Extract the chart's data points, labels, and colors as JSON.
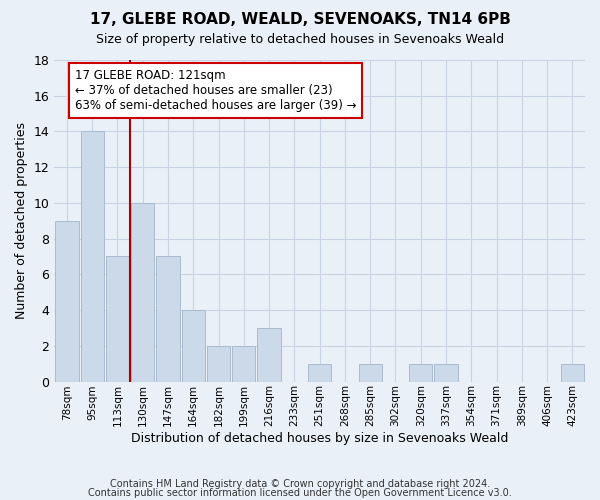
{
  "title1": "17, GLEBE ROAD, WEALD, SEVENOAKS, TN14 6PB",
  "title2": "Size of property relative to detached houses in Sevenoaks Weald",
  "xlabel": "Distribution of detached houses by size in Sevenoaks Weald",
  "ylabel": "Number of detached properties",
  "categories": [
    "78sqm",
    "95sqm",
    "113sqm",
    "130sqm",
    "147sqm",
    "164sqm",
    "182sqm",
    "199sqm",
    "216sqm",
    "233sqm",
    "251sqm",
    "268sqm",
    "285sqm",
    "302sqm",
    "320sqm",
    "337sqm",
    "354sqm",
    "371sqm",
    "389sqm",
    "406sqm",
    "423sqm"
  ],
  "values": [
    9,
    14,
    7,
    10,
    7,
    4,
    2,
    2,
    3,
    0,
    1,
    0,
    1,
    0,
    1,
    1,
    0,
    0,
    0,
    0,
    1
  ],
  "bar_color": "#ccd9e8",
  "bar_edge_color": "#aabbd0",
  "grid_color": "#c8d4e4",
  "background_color": "#eaf0f8",
  "vline_x": 2.5,
  "vline_color": "#aa0000",
  "annotation_line1": "17 GLEBE ROAD: 121sqm",
  "annotation_line2": "← 37% of detached houses are smaller (23)",
  "annotation_line3": "63% of semi-detached houses are larger (39) →",
  "annotation_box_color": "#ffffff",
  "annotation_box_edge": "#cc0000",
  "ylim": [
    0,
    18
  ],
  "yticks": [
    0,
    2,
    4,
    6,
    8,
    10,
    12,
    14,
    16,
    18
  ],
  "footer1": "Contains HM Land Registry data © Crown copyright and database right 2024.",
  "footer2": "Contains public sector information licensed under the Open Government Licence v3.0."
}
